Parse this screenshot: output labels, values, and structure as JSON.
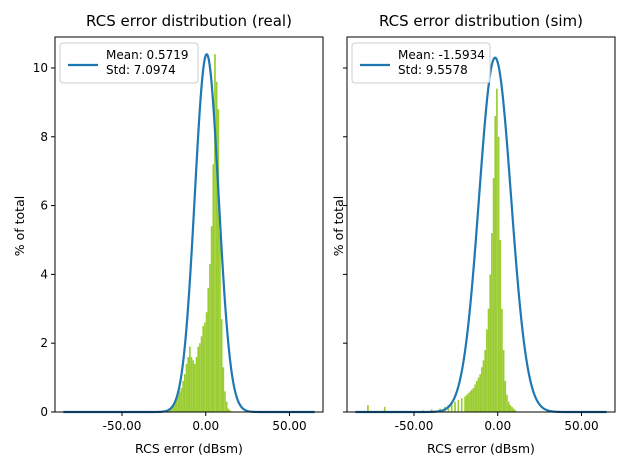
{
  "colors": {
    "curve": "#1f77b4",
    "hist": "#9acd32"
  },
  "chart_data": [
    {
      "type": "area",
      "title": "RCS error distribution (real)",
      "xlabel": "RCS error (dBsm)",
      "ylabel": "% of total",
      "xlim": [
        -90,
        70
      ],
      "ylim": [
        0,
        10.9
      ],
      "xticks": [
        -50,
        0,
        50
      ],
      "xtick_labels": [
        "-50.00",
        "0.00",
        "50.00"
      ],
      "yticks": [
        0,
        2,
        4,
        6,
        8,
        10
      ],
      "ytick_labels": [
        "0",
        "2",
        "4",
        "6",
        "8",
        "10"
      ],
      "legend": {
        "placement": "upper-left",
        "lines": [
          "Mean: 0.5719",
          "Std: 7.0974"
        ]
      },
      "gaussian": {
        "mean": 0.5719,
        "std": 7.0974,
        "peak": 10.4,
        "x_range": [
          -85,
          65
        ]
      },
      "histogram": {
        "bin_width": 1,
        "bins": [
          [
            -24,
            0.03
          ],
          [
            -23,
            0.05
          ],
          [
            -22,
            0.1
          ],
          [
            -21,
            0.15
          ],
          [
            -20,
            0.2
          ],
          [
            -19,
            0.3
          ],
          [
            -18,
            0.4
          ],
          [
            -17,
            0.5
          ],
          [
            -16,
            0.6
          ],
          [
            -15,
            0.7
          ],
          [
            -14,
            0.9
          ],
          [
            -13,
            1.1
          ],
          [
            -12,
            1.4
          ],
          [
            -11,
            1.6
          ],
          [
            -10,
            1.9
          ],
          [
            -9,
            1.6
          ],
          [
            -8,
            1.5
          ],
          [
            -7,
            1.4
          ],
          [
            -6,
            1.6
          ],
          [
            -5,
            1.9
          ],
          [
            -4,
            2.0
          ],
          [
            -3,
            2.2
          ],
          [
            -2,
            2.5
          ],
          [
            -1,
            2.6
          ],
          [
            0,
            2.9
          ],
          [
            1,
            3.6
          ],
          [
            2,
            4.3
          ],
          [
            3,
            5.4
          ],
          [
            4,
            7.2
          ],
          [
            5,
            10.4
          ],
          [
            6,
            9.6
          ],
          [
            7,
            8.8
          ],
          [
            8,
            5.2
          ],
          [
            9,
            2.7
          ],
          [
            10,
            1.3
          ],
          [
            11,
            0.6
          ],
          [
            12,
            0.3
          ],
          [
            13,
            0.1
          ],
          [
            14,
            0.05
          ]
        ]
      }
    },
    {
      "type": "area",
      "title": "RCS error distribution (sim)",
      "xlabel": "RCS error (dBsm)",
      "ylabel": "% of total",
      "xlim": [
        -90,
        70
      ],
      "ylim": [
        0,
        10.9
      ],
      "xticks": [
        -50,
        0,
        50
      ],
      "xtick_labels": [
        "-50.00",
        "0.00",
        "50.00"
      ],
      "yticks": [
        0,
        2,
        4,
        6,
        8,
        10
      ],
      "ytick_labels": [
        "0",
        "2",
        "4",
        "6",
        "8",
        "10"
      ],
      "legend": {
        "placement": "upper-left",
        "lines": [
          "Mean: -1.5934",
          "Std: 9.5578"
        ]
      },
      "gaussian": {
        "mean": -1.5934,
        "std": 9.5578,
        "peak": 10.3,
        "x_range": [
          -85,
          65
        ]
      },
      "histogram": {
        "bin_width": 1,
        "bins": [
          [
            -78,
            0.2
          ],
          [
            -68,
            0.15
          ],
          [
            -45,
            0.05
          ],
          [
            -40,
            0.08
          ],
          [
            -35,
            0.1
          ],
          [
            -32,
            0.15
          ],
          [
            -30,
            0.2
          ],
          [
            -28,
            0.25
          ],
          [
            -26,
            0.3
          ],
          [
            -24,
            0.35
          ],
          [
            -22,
            0.4
          ],
          [
            -20,
            0.45
          ],
          [
            -19,
            0.5
          ],
          [
            -18,
            0.55
          ],
          [
            -17,
            0.6
          ],
          [
            -16,
            0.65
          ],
          [
            -15,
            0.7
          ],
          [
            -14,
            0.8
          ],
          [
            -13,
            0.9
          ],
          [
            -12,
            1.0
          ],
          [
            -11,
            1.1
          ],
          [
            -10,
            1.3
          ],
          [
            -9,
            1.5
          ],
          [
            -8,
            1.8
          ],
          [
            -7,
            2.4
          ],
          [
            -6,
            3.0
          ],
          [
            -5,
            4.0
          ],
          [
            -4,
            5.2
          ],
          [
            -3,
            6.8
          ],
          [
            -2,
            8.6
          ],
          [
            -1,
            9.4
          ],
          [
            0,
            8.0
          ],
          [
            1,
            5.0
          ],
          [
            2,
            3.0
          ],
          [
            3,
            1.8
          ],
          [
            4,
            0.9
          ],
          [
            5,
            0.5
          ],
          [
            6,
            0.3
          ],
          [
            7,
            0.2
          ],
          [
            8,
            0.15
          ],
          [
            9,
            0.1
          ],
          [
            10,
            0.05
          ]
        ]
      }
    }
  ]
}
